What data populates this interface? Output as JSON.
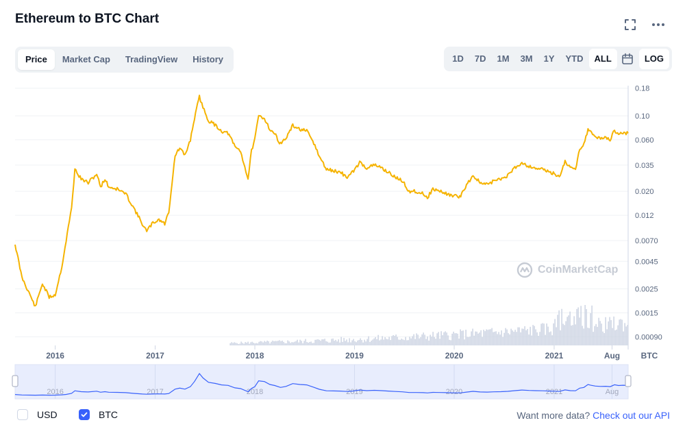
{
  "header": {
    "title": "Ethereum to BTC Chart"
  },
  "tabs": [
    {
      "label": "Price",
      "active": true
    },
    {
      "label": "Market Cap",
      "active": false
    },
    {
      "label": "TradingView",
      "active": false
    },
    {
      "label": "History",
      "active": false
    }
  ],
  "ranges": [
    {
      "label": "1D",
      "active": false
    },
    {
      "label": "7D",
      "active": false
    },
    {
      "label": "1M",
      "active": false
    },
    {
      "label": "3M",
      "active": false
    },
    {
      "label": "1Y",
      "active": false
    },
    {
      "label": "YTD",
      "active": false
    },
    {
      "label": "ALL",
      "active": true
    }
  ],
  "log_label": "LOG",
  "watermark": "CoinMarketCap",
  "footer": {
    "usd_label": "USD",
    "usd_checked": false,
    "btc_label": "BTC",
    "btc_checked": true,
    "api_prefix": "Want more data?",
    "api_link": "Check out our API"
  },
  "colors": {
    "price_line": "#f5b300",
    "volume": "#cfd6e4",
    "navigator_line": "#3861fb",
    "navigator_fill": "#e8edfd",
    "accent": "#3861fb"
  },
  "chart_data": {
    "type": "line",
    "title": "Ethereum to BTC Chart",
    "ylabel": "BTC",
    "yscale": "log",
    "ylim": [
      0.00075,
      0.19
    ],
    "xlim": [
      "2015-08-07",
      "2021-09-29"
    ],
    "y_ticks": [
      {
        "value": 0.18,
        "label": "0.18"
      },
      {
        "value": 0.1,
        "label": "0.10"
      },
      {
        "value": 0.06,
        "label": "0.060"
      },
      {
        "value": 0.035,
        "label": "0.035"
      },
      {
        "value": 0.02,
        "label": "0.020"
      },
      {
        "value": 0.012,
        "label": "0.012"
      },
      {
        "value": 0.007,
        "label": "0.0070"
      },
      {
        "value": 0.0045,
        "label": "0.0045"
      },
      {
        "value": 0.0025,
        "label": "0.0025"
      },
      {
        "value": 0.0015,
        "label": "0.0015"
      },
      {
        "value": 0.0009,
        "label": "0.00090"
      }
    ],
    "x_ticks": [
      {
        "date": "2016-01-01",
        "label": "2016"
      },
      {
        "date": "2017-01-01",
        "label": "2017"
      },
      {
        "date": "2018-01-01",
        "label": "2018"
      },
      {
        "date": "2019-01-01",
        "label": "2019"
      },
      {
        "date": "2020-01-01",
        "label": "2020"
      },
      {
        "date": "2021-01-01",
        "label": "2021"
      },
      {
        "date": "2021-08-01",
        "label": "Aug"
      }
    ],
    "series": [
      {
        "name": "",
        "x": [
          "2015-08-07",
          "2015-09-01",
          "2015-10-01",
          "2015-10-20",
          "2015-11-15",
          "2015-12-10",
          "2016-01-01",
          "2016-01-25",
          "2016-02-10",
          "2016-03-01",
          "2016-03-13",
          "2016-04-05",
          "2016-05-01",
          "2016-06-01",
          "2016-06-15",
          "2016-07-01",
          "2016-07-15",
          "2016-08-15",
          "2016-09-15",
          "2016-10-15",
          "2016-11-15",
          "2016-12-01",
          "2016-12-20",
          "2017-01-15",
          "2017-02-05",
          "2017-02-20",
          "2017-03-15",
          "2017-04-01",
          "2017-04-20",
          "2017-05-10",
          "2017-05-25",
          "2017-06-12",
          "2017-06-25",
          "2017-07-15",
          "2017-08-10",
          "2017-09-01",
          "2017-09-25",
          "2017-10-20",
          "2017-11-10",
          "2017-12-07",
          "2017-12-20",
          "2018-01-01",
          "2018-01-15",
          "2018-02-05",
          "2018-02-25",
          "2018-03-15",
          "2018-04-05",
          "2018-04-25",
          "2018-05-20",
          "2018-06-15",
          "2018-07-10",
          "2018-08-05",
          "2018-08-25",
          "2018-09-20",
          "2018-10-15",
          "2018-11-10",
          "2018-12-05",
          "2018-12-25",
          "2019-01-20",
          "2019-02-15",
          "2019-03-15",
          "2019-04-10",
          "2019-05-05",
          "2019-05-30",
          "2019-06-25",
          "2019-07-20",
          "2019-08-15",
          "2019-09-10",
          "2019-09-25",
          "2019-10-15",
          "2019-11-10",
          "2019-12-05",
          "2019-12-30",
          "2020-01-25",
          "2020-02-15",
          "2020-03-10",
          "2020-04-05",
          "2020-05-01",
          "2020-05-25",
          "2020-06-20",
          "2020-07-15",
          "2020-08-10",
          "2020-09-05",
          "2020-10-01",
          "2020-10-25",
          "2020-11-20",
          "2020-12-15",
          "2021-01-05",
          "2021-01-20",
          "2021-02-10",
          "2021-03-01",
          "2021-03-20",
          "2021-04-05",
          "2021-04-20",
          "2021-05-05",
          "2021-05-15",
          "2021-06-01",
          "2021-06-20",
          "2021-07-10",
          "2021-07-25",
          "2021-08-10",
          "2021-08-25",
          "2021-09-10",
          "2021-09-29"
        ],
        "y": [
          0.0065,
          0.0032,
          0.0022,
          0.0017,
          0.0028,
          0.0021,
          0.0022,
          0.004,
          0.007,
          0.014,
          0.032,
          0.026,
          0.024,
          0.029,
          0.022,
          0.026,
          0.022,
          0.021,
          0.019,
          0.014,
          0.01,
          0.0085,
          0.01,
          0.011,
          0.01,
          0.013,
          0.043,
          0.05,
          0.043,
          0.06,
          0.095,
          0.15,
          0.12,
          0.09,
          0.082,
          0.072,
          0.069,
          0.052,
          0.047,
          0.026,
          0.048,
          0.06,
          0.1,
          0.095,
          0.075,
          0.068,
          0.055,
          0.062,
          0.081,
          0.075,
          0.072,
          0.056,
          0.042,
          0.032,
          0.031,
          0.03,
          0.027,
          0.03,
          0.037,
          0.033,
          0.035,
          0.033,
          0.03,
          0.027,
          0.025,
          0.02,
          0.02,
          0.019,
          0.0175,
          0.021,
          0.02,
          0.019,
          0.018,
          0.018,
          0.023,
          0.028,
          0.024,
          0.023,
          0.025,
          0.026,
          0.028,
          0.033,
          0.037,
          0.034,
          0.033,
          0.032,
          0.03,
          0.029,
          0.027,
          0.038,
          0.033,
          0.032,
          0.05,
          0.055,
          0.075,
          0.07,
          0.064,
          0.062,
          0.063,
          0.06,
          0.073,
          0.068,
          0.07,
          0.069
        ]
      }
    ]
  }
}
